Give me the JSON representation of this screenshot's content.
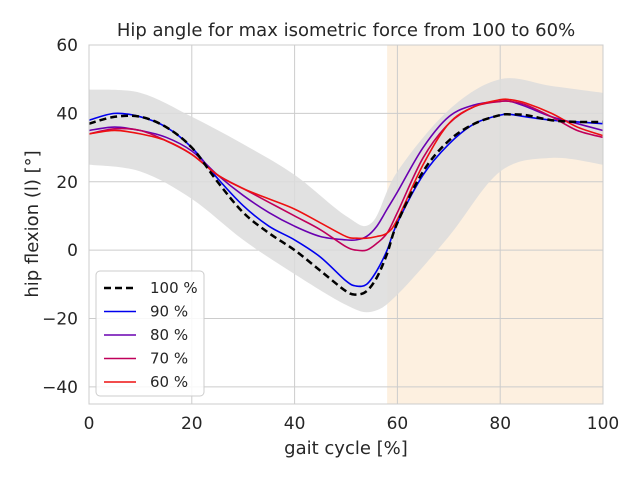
{
  "chart_data": {
    "type": "line",
    "title": "Hip angle for max isometric force from 100 to 60%",
    "xlabel": "gait cycle [%]",
    "ylabel": "hip flexion (l) [°]",
    "xlim": [
      0,
      100
    ],
    "ylim": [
      -45,
      60
    ],
    "xticks": [
      0,
      20,
      40,
      60,
      80,
      100
    ],
    "yticks": [
      -40,
      -20,
      0,
      20,
      40,
      60
    ],
    "grid": true,
    "legend_position": "lower-left",
    "shaded_region": {
      "x": [
        58,
        100
      ],
      "color": "#fdf0e0"
    },
    "band": {
      "color": "#dcdcdc",
      "x": [
        0,
        10,
        20,
        30,
        40,
        50,
        55,
        60,
        70,
        80,
        90,
        100
      ],
      "upper": [
        47,
        46,
        39,
        31,
        22,
        10,
        8,
        23,
        41,
        50,
        48,
        46
      ],
      "lower": [
        25,
        23,
        15,
        3,
        -7,
        -16,
        -18,
        -13,
        4,
        23,
        27,
        25
      ]
    },
    "x": [
      0,
      5,
      10,
      15,
      20,
      25,
      30,
      35,
      40,
      45,
      50,
      52,
      54,
      56,
      58,
      60,
      65,
      70,
      75,
      80,
      82,
      85,
      90,
      95,
      100
    ],
    "series": [
      {
        "name": "100 %",
        "color": "#000000",
        "dashed": true,
        "width": 2.5,
        "values": [
          37,
          39,
          39,
          36,
          30,
          20,
          11,
          5,
          0,
          -6,
          -12,
          -13,
          -12,
          -8,
          -1,
          8,
          23,
          32,
          37,
          39.5,
          39.7,
          39.5,
          38,
          37.5,
          37.5
        ]
      },
      {
        "name": "90 %",
        "color": "#0000ee",
        "dashed": false,
        "width": 1.6,
        "values": [
          38,
          40,
          39,
          36,
          30,
          21,
          13,
          7,
          3,
          -2,
          -9,
          -10.5,
          -10,
          -6,
          0,
          8,
          22,
          31,
          37,
          39.5,
          39.7,
          39,
          38,
          37.5,
          37
        ]
      },
      {
        "name": "80 %",
        "color": "#6a00b0",
        "dashed": false,
        "width": 1.6,
        "values": [
          35,
          36,
          35,
          33,
          29,
          22,
          16,
          11,
          7,
          4,
          3,
          3,
          4,
          7,
          12,
          17,
          30,
          39,
          42.5,
          43.5,
          43.5,
          42,
          39,
          37,
          35
        ]
      },
      {
        "name": "70 %",
        "color": "#c0005a",
        "dashed": false,
        "width": 1.6,
        "values": [
          34,
          35.5,
          35,
          32,
          28,
          22,
          18,
          14,
          10,
          6,
          1,
          0,
          0,
          2,
          5,
          11,
          27,
          37,
          42,
          43.5,
          43.5,
          42.5,
          39,
          35,
          33
        ]
      },
      {
        "name": "60 %",
        "color": "#ee1111",
        "dashed": false,
        "width": 1.6,
        "values": [
          34,
          35,
          34,
          32,
          28,
          22,
          18,
          15,
          12,
          8,
          4,
          3.5,
          3.5,
          4,
          5,
          9,
          25,
          37,
          42,
          44,
          44,
          43,
          40,
          36,
          33.5
        ]
      }
    ]
  }
}
